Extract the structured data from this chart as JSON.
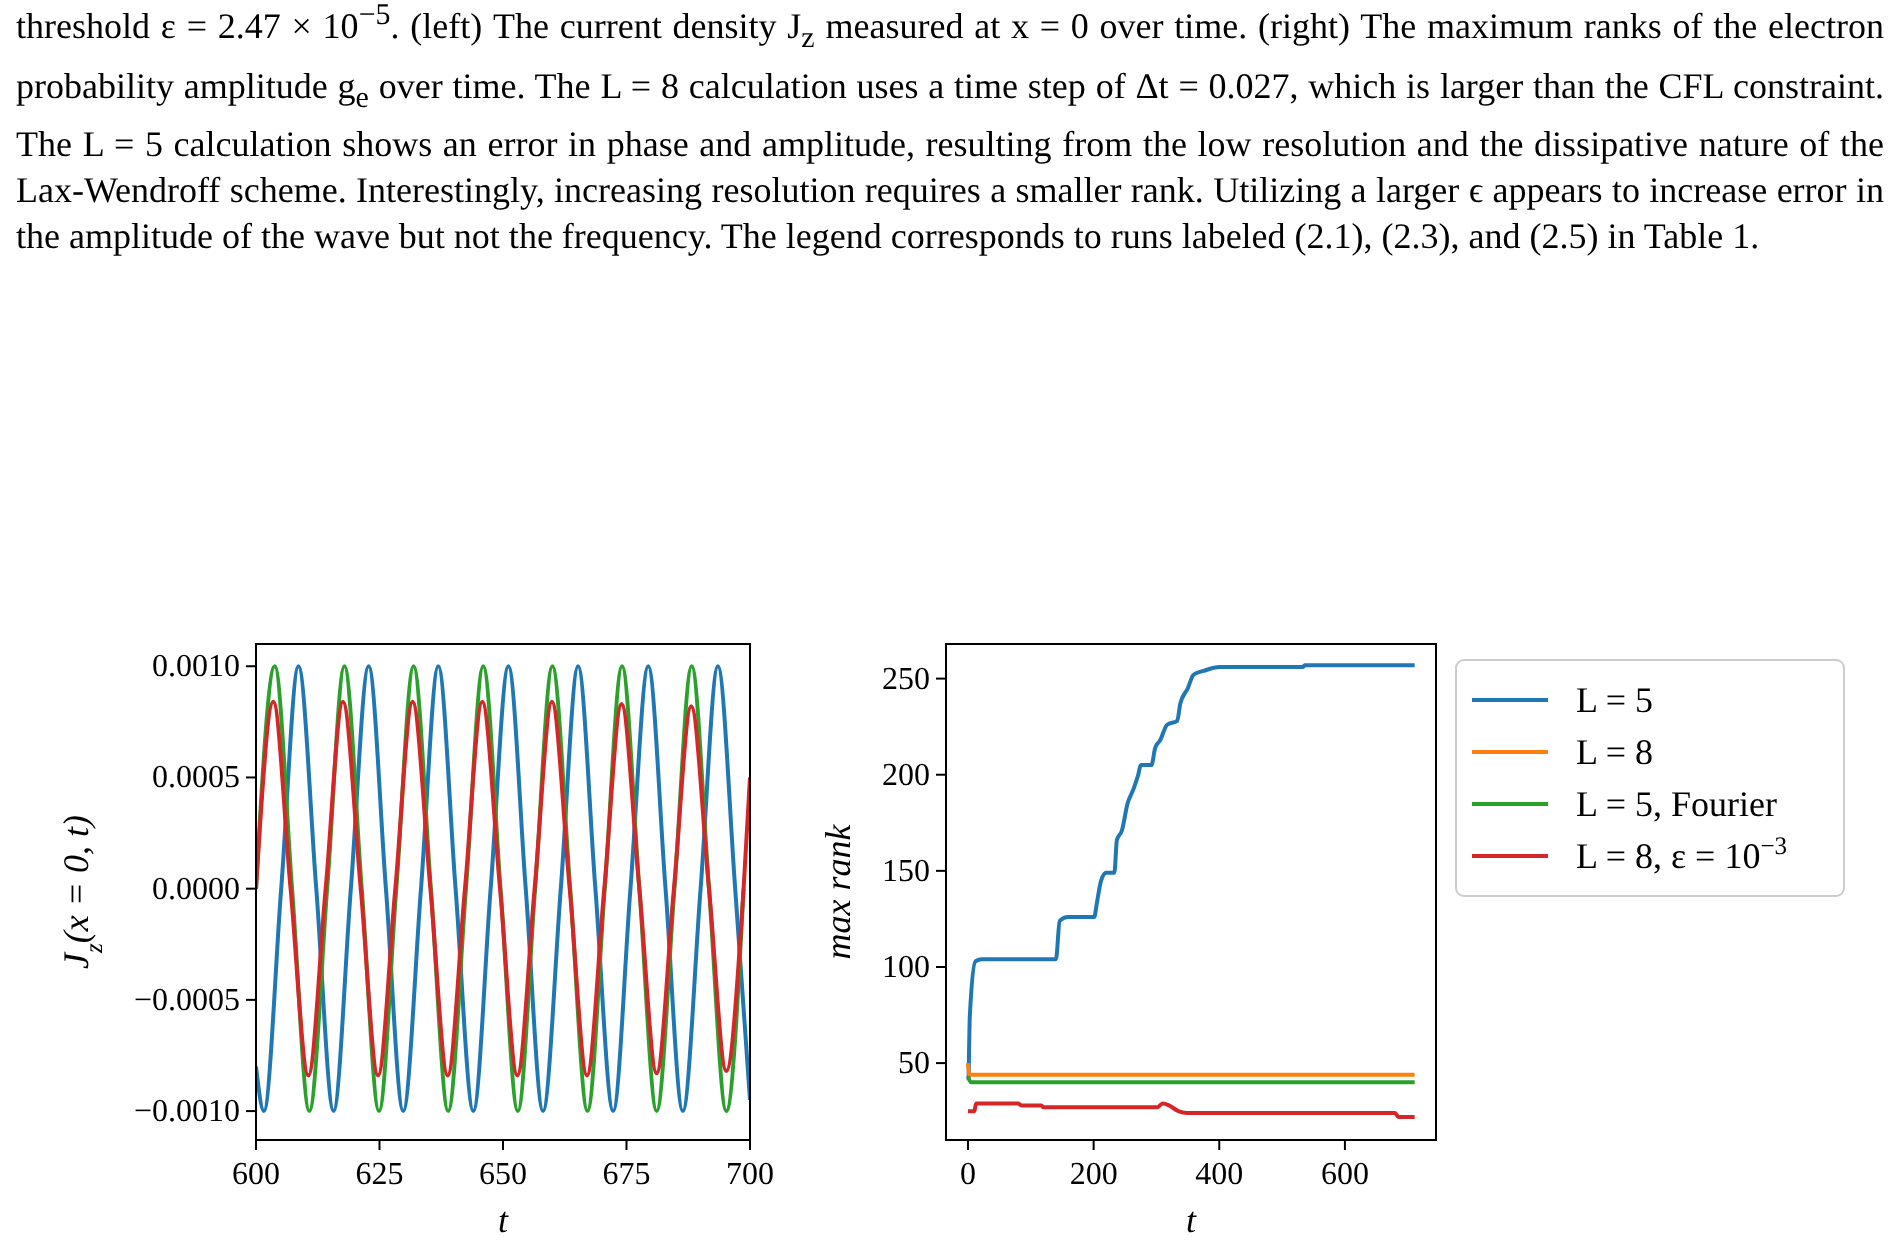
{
  "chart_data": [
    {
      "type": "line",
      "annotations": [
        "threshold ε = 2.47 × 10$^{−5}$. (left) The current density J$_{z}$ measured at x = 0 over time. (right) The maximum ranks of the electron probability amplitude g$_{e}$ over time. The L = 8 calculation uses a time step of Δt = 0.027, which is larger than the CFL constraint. The L = 5 calculation shows an error in phase and amplitude, resulting from the low resolution and the dissipative nature of the Lax-Wendroff scheme. Interestingly, increasing resolution requires a smaller rank. Utilizing a larger ϵ appears to increase error in the amplitude of the wave but not the frequency. The legend corresponds to runs labeled (2.1), (2.3), and (2.5) in Table 1."
      ],
      "xlabel": "t",
      "ylabel": "J$_{z}$(x = 0, t)",
      "xlim": [
        600,
        700
      ],
      "xticks": [
        600,
        625,
        650,
        675,
        700
      ],
      "ylim": [
        -0.00113,
        0.0011
      ],
      "yticks": [
        {
          "value": -0.001,
          "label": "−0.0010"
        },
        {
          "value": -0.0005,
          "label": "−0.0005"
        },
        {
          "value": 0,
          "label": "0.0000"
        },
        {
          "value": 0.0005,
          "label": "0.0005"
        },
        {
          "value": 0.001,
          "label": "0.0010"
        }
      ],
      "series": [
        {
          "color": "#1f77b4",
          "x": [
            600,
            601.6,
            605.1,
            608.6,
            612.2,
            615.7,
            619.2,
            622.8,
            626.3,
            629.8,
            633.4,
            636.9,
            640.4,
            644.0,
            647.5,
            651.1,
            654.6,
            658.1,
            661.7,
            665.2,
            668.7,
            672.3,
            675.8,
            679.4,
            682.9,
            686.4,
            690.0,
            693.5,
            697.0,
            700
          ],
          "values": [
            -0.0008,
            -0.001,
            0,
            0.001,
            0,
            -0.001,
            0,
            0.001,
            0,
            -0.001,
            0,
            0.001,
            0,
            -0.001,
            0,
            0.001,
            0,
            -0.001,
            0,
            0.001,
            0,
            -0.001,
            0,
            0.001,
            0,
            -0.001,
            0,
            0.001,
            0,
            -0.00095
          ]
        },
        {
          "color": "#2ca02c",
          "x": [
            600,
            603.8,
            607.3,
            610.8,
            614.4,
            617.9,
            621.4,
            624.9,
            628.4,
            631.9,
            635.4,
            638.9,
            642.5,
            646.0,
            649.5,
            653.0,
            656.5,
            660.0,
            663.6,
            667.1,
            670.6,
            674.1,
            677.6,
            681.1,
            684.7,
            688.2,
            691.7,
            695.2,
            698.7
          ],
          "values": [
            0,
            0.001,
            0,
            -0.001,
            0,
            0.001,
            0,
            -0.001,
            0,
            0.001,
            0,
            -0.001,
            0,
            0.001,
            0,
            -0.001,
            0,
            0.001,
            0,
            -0.001,
            0,
            0.001,
            0,
            -0.001,
            0,
            0.001,
            0,
            -0.001,
            0
          ]
        },
        {
          "color": "#d62728",
          "x": [
            600,
            603.5,
            607.0,
            610.6,
            614.1,
            617.6,
            621.2,
            624.7,
            628.2,
            631.7,
            635.3,
            638.8,
            642.3,
            645.8,
            649.4,
            652.9,
            656.4,
            659.9,
            663.5,
            667.0,
            670.5,
            674.0,
            677.6,
            681.1,
            684.6,
            688.1,
            691.7,
            695.2,
            698.7,
            700
          ],
          "values": [
            0,
            0.00084,
            0,
            -0.00084,
            0,
            0.00084,
            0,
            -0.00084,
            0,
            0.00084,
            0,
            -0.00084,
            0,
            0.00084,
            0,
            -0.00084,
            0,
            0.00084,
            0,
            -0.00084,
            0,
            0.00083,
            0,
            -0.00083,
            0,
            0.00082,
            0,
            -0.00082,
            0,
            0.0005
          ]
        }
      ]
    },
    {
      "type": "line",
      "xlabel": "t",
      "ylabel": "max rank",
      "xlim": [
        -35,
        745
      ],
      "xticks": [
        0,
        200,
        400,
        600
      ],
      "ylim": [
        10,
        268
      ],
      "yticks": [
        50,
        100,
        150,
        200,
        250
      ],
      "legend": "right",
      "series": [
        {
          "name": "L = 5",
          "color": "#1f77b4",
          "x": [
            1,
            3,
            12,
            22,
            140,
            146,
            159,
            201,
            205,
            212,
            220,
            233,
            237,
            245,
            254,
            264,
            271,
            275,
            292,
            298,
            306,
            317,
            333,
            338,
            350,
            359,
            375,
            401,
            533,
            536,
            711
          ],
          "values": [
            41,
            75,
            103,
            104,
            104,
            124,
            126,
            126,
            133,
            145,
            149,
            149,
            166,
            171,
            185,
            193,
            200,
            205,
            205,
            214,
            218,
            226,
            228,
            237,
            245,
            252,
            254,
            256,
            256,
            257,
            257
          ]
        },
        {
          "name": "L = 8",
          "color": "#ff7f0e",
          "x": [
            0,
            2,
            711
          ],
          "values": [
            50,
            44,
            44
          ]
        },
        {
          "name": "L = 5, Fourier",
          "color": "#2ca02c",
          "x": [
            0,
            5,
            711
          ],
          "values": [
            43,
            40,
            40
          ]
        },
        {
          "name": "L = 8, ε = 10$^{−3}$",
          "color": "#d62728",
          "x": [
            0,
            10,
            13,
            80,
            85,
            117,
            120,
            301,
            310,
            320,
            335,
            348,
            680,
            685,
            711
          ],
          "values": [
            25,
            25,
            29,
            29,
            28,
            28,
            27,
            27,
            29,
            28,
            25,
            24,
            24,
            22,
            22
          ]
        }
      ]
    }
  ]
}
